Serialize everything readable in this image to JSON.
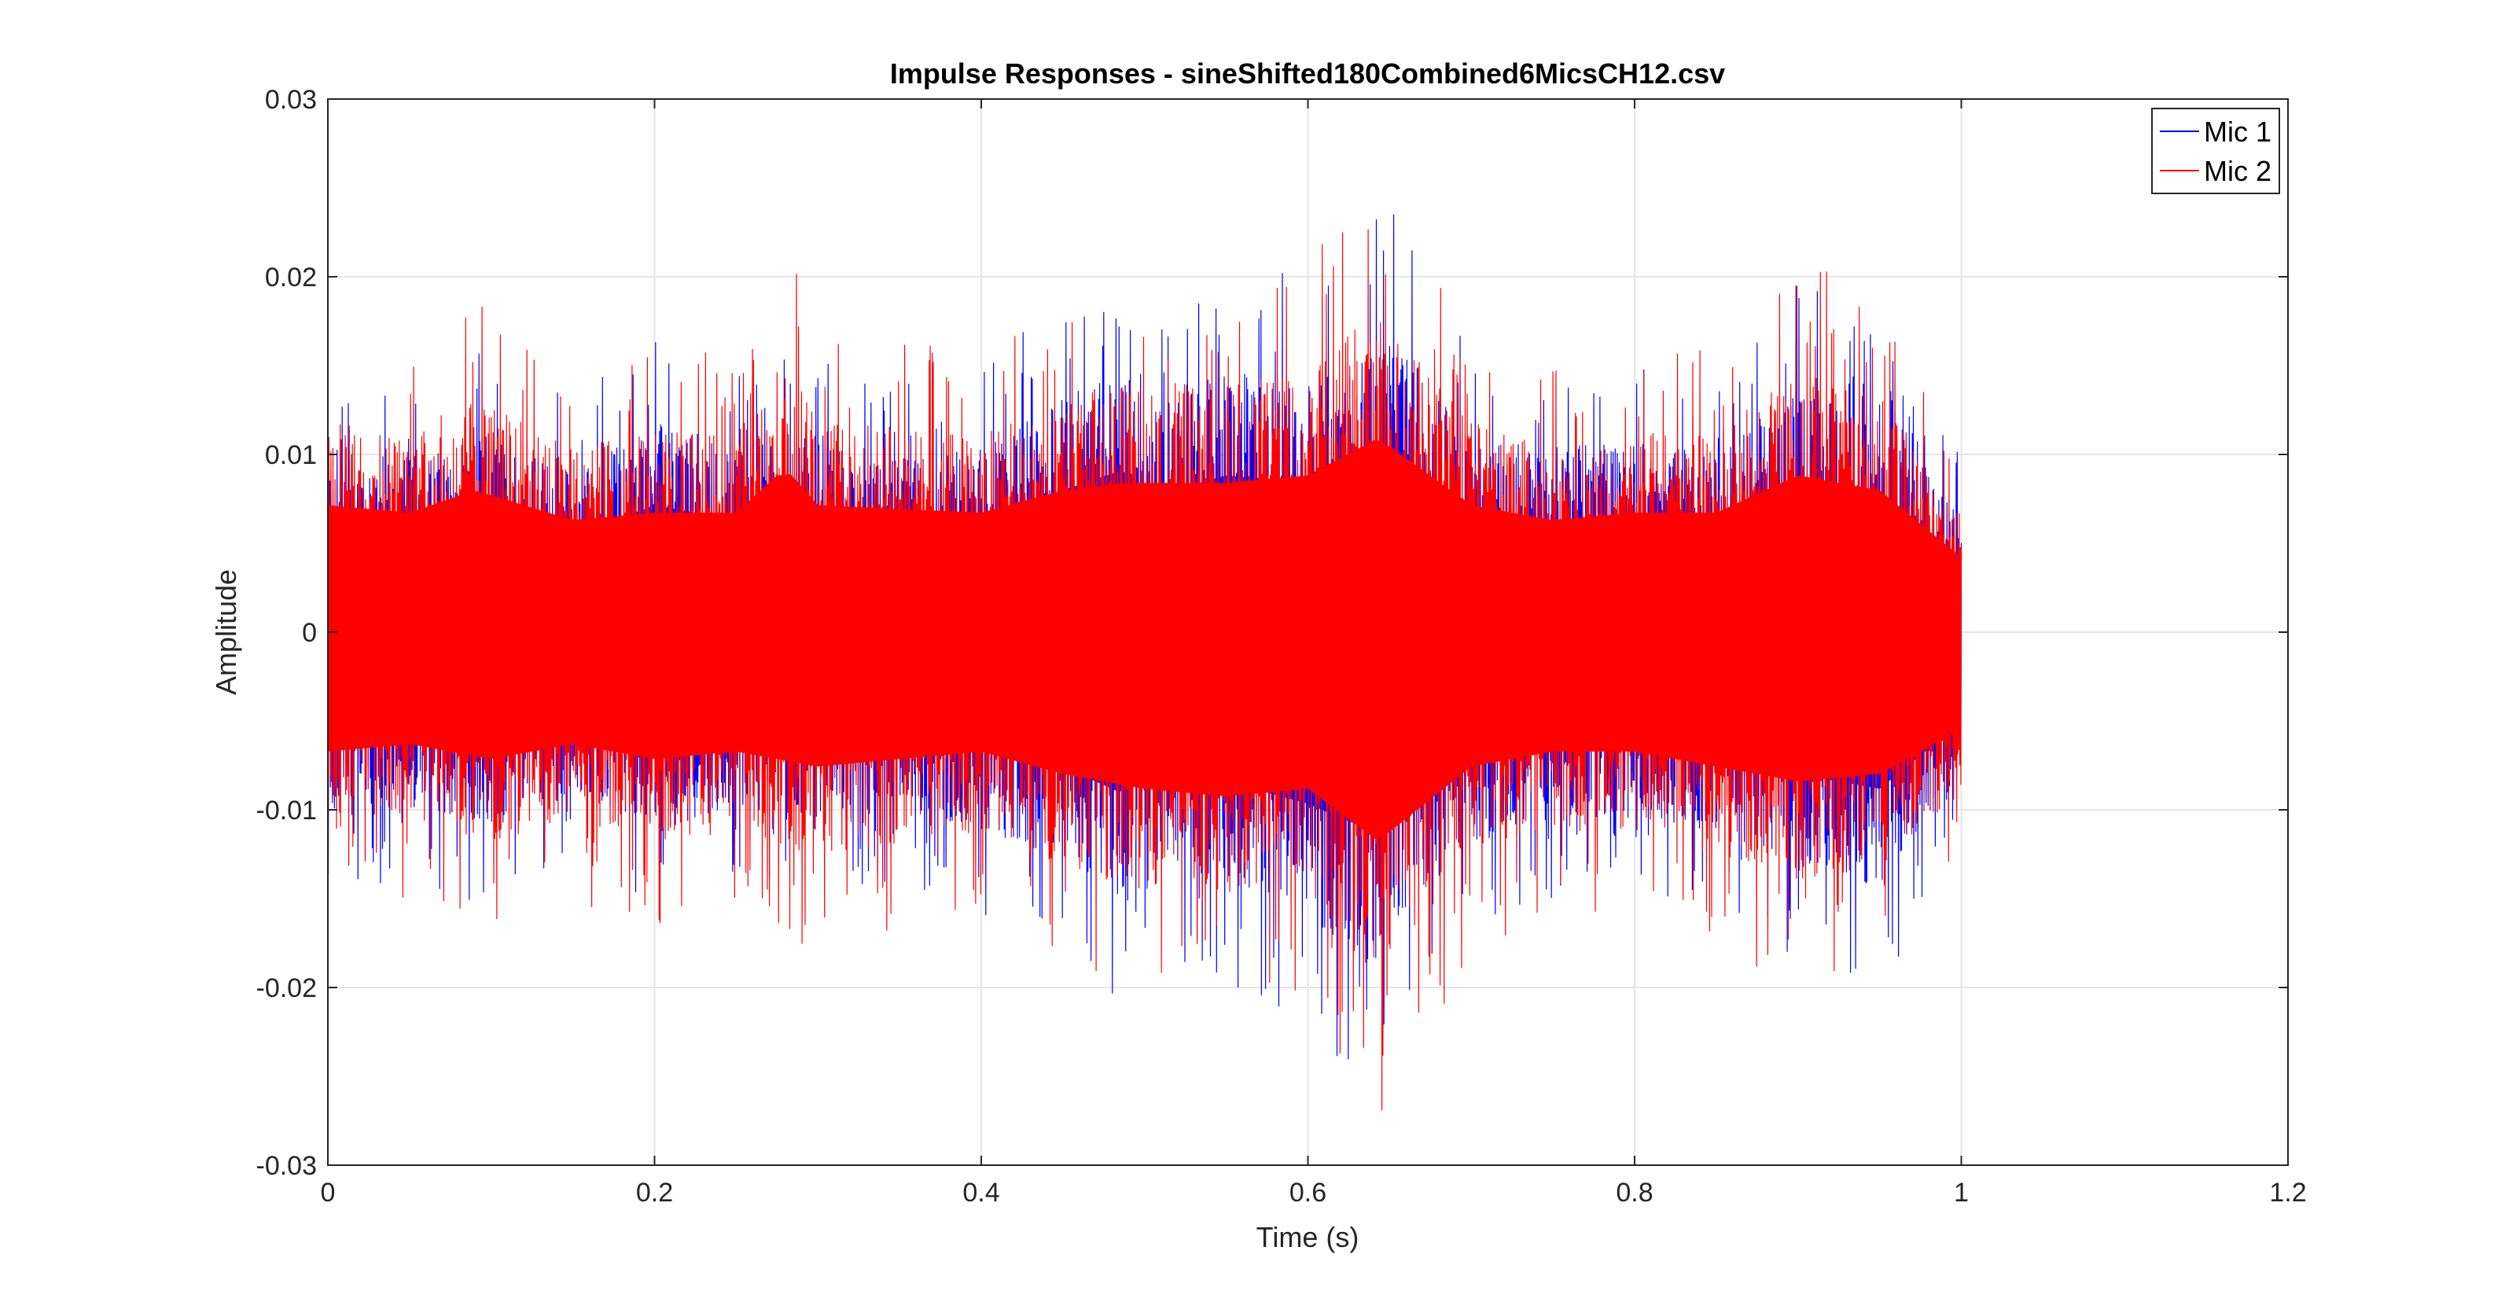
{
  "chart_data": {
    "type": "line",
    "title": "Impulse Responses - sineShifted180Combined6MicsCH12.csv",
    "xlabel": "Time (s)",
    "ylabel": "Amplitude",
    "xlim": [
      0,
      1.2
    ],
    "ylim": [
      -0.03,
      0.03
    ],
    "xticks": [
      0,
      0.2,
      0.4,
      0.6,
      0.8,
      1,
      1.2
    ],
    "xtick_labels": [
      "0",
      "0.2",
      "0.4",
      "0.6",
      "0.8",
      "1",
      "1.2"
    ],
    "yticks": [
      0.03,
      0.02,
      0.01,
      0,
      -0.01,
      -0.02,
      -0.03
    ],
    "ytick_labels": [
      "0.03",
      "0.02",
      "0.01",
      "0",
      "-0.01",
      "-0.02",
      "-0.03"
    ],
    "grid": true,
    "legend_position": "top-right",
    "series": [
      {
        "name": "Mic 1",
        "color": "#0000ff",
        "x_range": [
          0,
          1.0
        ],
        "envelope_upper": [
          [
            0.0,
            0.015
          ],
          [
            0.05,
            0.014
          ],
          [
            0.1,
            0.016
          ],
          [
            0.15,
            0.013
          ],
          [
            0.2,
            0.017
          ],
          [
            0.25,
            0.015
          ],
          [
            0.3,
            0.016
          ],
          [
            0.35,
            0.014
          ],
          [
            0.4,
            0.015
          ],
          [
            0.45,
            0.019
          ],
          [
            0.49,
            0.022
          ],
          [
            0.5,
            0.018
          ],
          [
            0.55,
            0.021
          ],
          [
            0.6,
            0.02
          ],
          [
            0.643,
            0.025
          ],
          [
            0.7,
            0.016
          ],
          [
            0.75,
            0.015
          ],
          [
            0.8,
            0.016
          ],
          [
            0.85,
            0.014
          ],
          [
            0.9,
            0.02
          ],
          [
            0.95,
            0.017
          ],
          [
            1.0,
            0.01
          ]
        ],
        "envelope_lower": [
          [
            0.0,
            -0.015
          ],
          [
            0.05,
            -0.014
          ],
          [
            0.1,
            -0.016
          ],
          [
            0.15,
            -0.013
          ],
          [
            0.2,
            -0.016
          ],
          [
            0.25,
            -0.014
          ],
          [
            0.3,
            -0.016
          ],
          [
            0.35,
            -0.014
          ],
          [
            0.4,
            -0.016
          ],
          [
            0.45,
            -0.018
          ],
          [
            0.49,
            -0.022
          ],
          [
            0.5,
            -0.018
          ],
          [
            0.55,
            -0.02
          ],
          [
            0.6,
            -0.023
          ],
          [
            0.643,
            -0.027
          ],
          [
            0.7,
            -0.017
          ],
          [
            0.75,
            -0.015
          ],
          [
            0.8,
            -0.015
          ],
          [
            0.85,
            -0.016
          ],
          [
            0.9,
            -0.019
          ],
          [
            0.95,
            -0.021
          ],
          [
            1.0,
            -0.012
          ]
        ]
      },
      {
        "name": "Mic 2",
        "color": "#ff0000",
        "x_range": [
          0,
          1.0
        ],
        "envelope_upper": [
          [
            0.0,
            0.017
          ],
          [
            0.05,
            0.016
          ],
          [
            0.09,
            0.019
          ],
          [
            0.15,
            0.015
          ],
          [
            0.2,
            0.016
          ],
          [
            0.25,
            0.016
          ],
          [
            0.28,
            0.022
          ],
          [
            0.3,
            0.017
          ],
          [
            0.4,
            0.016
          ],
          [
            0.45,
            0.019
          ],
          [
            0.49,
            0.02
          ],
          [
            0.55,
            0.02
          ],
          [
            0.6,
            0.021
          ],
          [
            0.643,
            0.026
          ],
          [
            0.7,
            0.017
          ],
          [
            0.75,
            0.015
          ],
          [
            0.8,
            0.016
          ],
          [
            0.85,
            0.016
          ],
          [
            0.9,
            0.021
          ],
          [
            0.95,
            0.019
          ],
          [
            1.0,
            0.01
          ]
        ],
        "envelope_lower": [
          [
            0.0,
            -0.016
          ],
          [
            0.05,
            -0.015
          ],
          [
            0.1,
            -0.017
          ],
          [
            0.15,
            -0.015
          ],
          [
            0.2,
            -0.017
          ],
          [
            0.25,
            -0.016
          ],
          [
            0.3,
            -0.018
          ],
          [
            0.35,
            -0.017
          ],
          [
            0.4,
            -0.016
          ],
          [
            0.45,
            -0.019
          ],
          [
            0.5,
            -0.021
          ],
          [
            0.55,
            -0.022
          ],
          [
            0.6,
            -0.021
          ],
          [
            0.643,
            -0.028
          ],
          [
            0.7,
            -0.018
          ],
          [
            0.75,
            -0.016
          ],
          [
            0.8,
            -0.016
          ],
          [
            0.85,
            -0.018
          ],
          [
            0.9,
            -0.02
          ],
          [
            0.95,
            -0.019
          ],
          [
            1.0,
            -0.013
          ]
        ]
      }
    ]
  }
}
